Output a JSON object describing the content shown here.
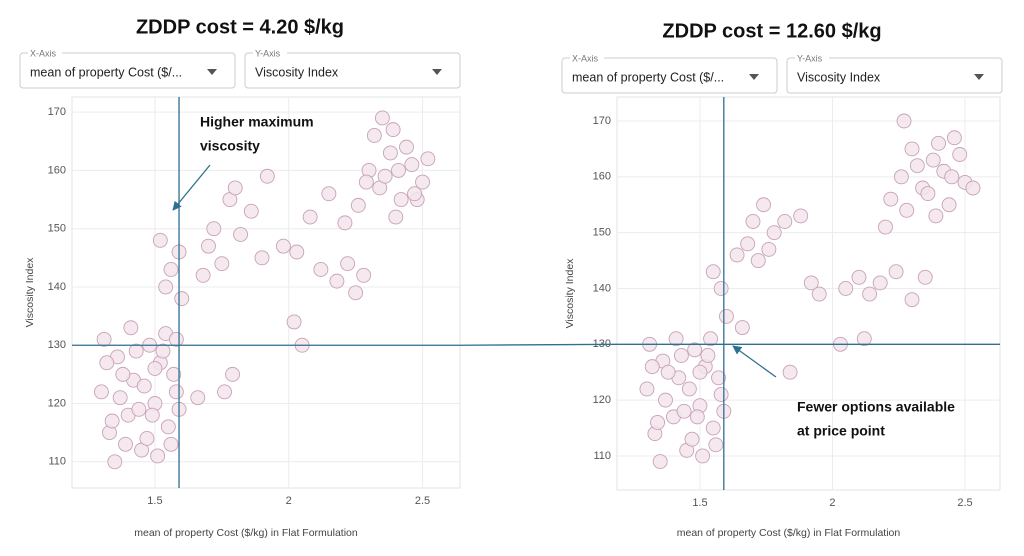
{
  "chart_data": [
    {
      "type": "scatter",
      "title": "ZDDP cost = 4.20 $/kg",
      "x_control": {
        "label": "X-Axis",
        "value": "mean of property Cost ($/..."
      },
      "y_control": {
        "label": "Y-Axis",
        "value": "Viscosity Index"
      },
      "x_label": "mean of property Cost ($/kg) in Flat Formulation",
      "y_label": "Viscosity Index",
      "color": "#f3e4ec",
      "x": [
        1.3,
        1.33,
        1.36,
        1.4,
        1.42,
        1.45,
        1.48,
        1.5,
        1.52,
        1.55,
        1.58,
        1.31,
        1.35,
        1.38,
        1.41,
        1.44,
        1.47,
        1.5,
        1.53,
        1.56,
        1.59,
        1.32,
        1.37,
        1.43,
        1.46,
        1.51,
        1.54,
        1.57,
        1.34,
        1.39,
        1.49,
        1.58,
        1.54,
        1.56,
        1.59,
        1.52,
        1.6,
        1.68,
        1.72,
        1.78,
        1.82,
        1.86,
        1.9,
        1.75,
        1.8,
        1.7,
        1.76,
        1.79,
        1.66,
        1.92,
        1.98,
        2.02,
        2.08,
        2.12,
        2.18,
        2.22,
        2.28,
        2.05,
        2.15,
        2.25,
        2.03,
        2.3,
        2.34,
        2.38,
        2.42,
        2.46,
        2.5,
        2.26,
        2.32,
        2.36,
        2.4,
        2.44,
        2.48,
        2.52,
        2.29,
        2.35,
        2.41,
        2.47,
        2.21,
        2.39
      ],
      "values": [
        122,
        115,
        128,
        118,
        124,
        112,
        130,
        120,
        127,
        116,
        122,
        131,
        110,
        125,
        133,
        119,
        114,
        126,
        129,
        113,
        119,
        127,
        121,
        129,
        123,
        111,
        132,
        125,
        117,
        113,
        118,
        131,
        140,
        143,
        146,
        148,
        138,
        142,
        150,
        155,
        149,
        153,
        145,
        144,
        157,
        147,
        122,
        125,
        121,
        159,
        147,
        134,
        152,
        143,
        141,
        144,
        142,
        130,
        156,
        139,
        146,
        160,
        157,
        163,
        155,
        161,
        158,
        154,
        166,
        159,
        152,
        164,
        155,
        162,
        158,
        169,
        160,
        156,
        151,
        167
      ],
      "xlim": [
        1.19,
        2.64
      ],
      "ylim": [
        105.5,
        172.6
      ],
      "xticks": [
        1.5,
        2,
        2.5
      ],
      "yticks": [
        110,
        120,
        130,
        140,
        150,
        160,
        170
      ],
      "grid": true,
      "reference_lines": {
        "x": 1.59,
        "y": 130,
        "color": "#2f6f8f"
      },
      "annotation": {
        "lines": [
          "Higher maximum",
          "viscosity"
        ]
      }
    },
    {
      "type": "scatter",
      "title": "ZDDP cost = 12.60 $/kg",
      "x_control": {
        "label": "X-Axis",
        "value": "mean of property Cost ($/..."
      },
      "y_control": {
        "label": "Y-Axis",
        "value": "Viscosity Index"
      },
      "x_label": "mean of property Cost ($/kg) in Flat Formulation",
      "y_label": "Viscosity Index",
      "color": "#f3e4ec",
      "x": [
        1.3,
        1.33,
        1.36,
        1.4,
        1.42,
        1.45,
        1.48,
        1.5,
        1.52,
        1.55,
        1.58,
        1.31,
        1.35,
        1.38,
        1.41,
        1.44,
        1.47,
        1.5,
        1.53,
        1.56,
        1.59,
        1.32,
        1.37,
        1.43,
        1.46,
        1.51,
        1.54,
        1.57,
        1.34,
        1.49,
        1.55,
        1.58,
        1.6,
        1.64,
        1.7,
        1.66,
        1.68,
        1.74,
        1.78,
        1.82,
        1.88,
        1.76,
        1.72,
        1.92,
        1.84,
        1.95,
        2.05,
        2.1,
        2.14,
        2.18,
        2.24,
        2.3,
        2.35,
        2.12,
        2.03,
        2.22,
        2.26,
        2.3,
        2.34,
        2.38,
        2.42,
        2.46,
        2.5,
        2.28,
        2.32,
        2.36,
        2.4,
        2.44,
        2.48,
        2.53,
        2.2,
        2.27,
        2.39,
        2.45
      ],
      "values": [
        122,
        114,
        127,
        117,
        124,
        111,
        129,
        119,
        126,
        115,
        121,
        130,
        109,
        125,
        131,
        118,
        113,
        125,
        128,
        112,
        118,
        126,
        120,
        128,
        122,
        110,
        131,
        124,
        116,
        117,
        143,
        140,
        135,
        146,
        152,
        133,
        148,
        155,
        150,
        152,
        153,
        147,
        145,
        141,
        125,
        139,
        140,
        142,
        139,
        141,
        143,
        138,
        142,
        131,
        130,
        156,
        160,
        165,
        158,
        163,
        161,
        167,
        159,
        154,
        162,
        157,
        166,
        155,
        164,
        158,
        151,
        170,
        153,
        160
      ],
      "xlim": [
        1.187,
        2.632
      ],
      "ylim": [
        103.9,
        174.3
      ],
      "xticks": [
        1.5,
        2,
        2.5
      ],
      "yticks": [
        110,
        120,
        130,
        140,
        150,
        160,
        170
      ],
      "grid": true,
      "reference_lines": {
        "x": 1.59,
        "y": 130,
        "color": "#2f6f8f"
      },
      "annotation": {
        "lines": [
          "Fewer options available",
          "at price point"
        ]
      }
    }
  ]
}
